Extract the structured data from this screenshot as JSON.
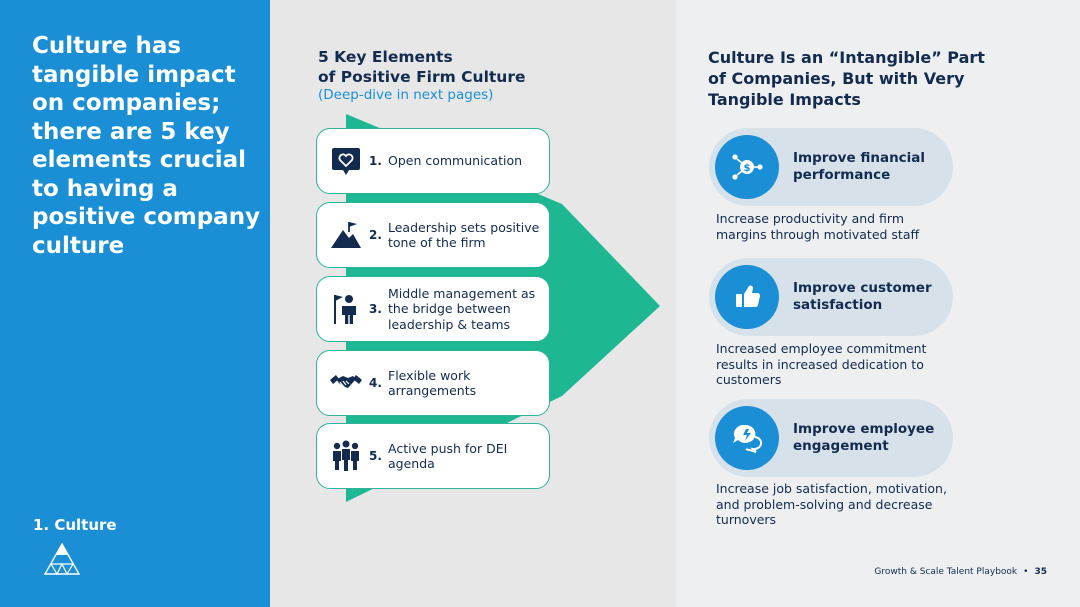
{
  "left": {
    "headline": "Culture has tangible impact on companies; there are 5 key elements crucial to having a positive company culture",
    "section_label": "1. Culture"
  },
  "middle": {
    "title_line1": "5 Key Elements",
    "title_line2": "of Positive Firm Culture",
    "subtitle": "(Deep-dive in next pages)",
    "elements": [
      {
        "number": "1.",
        "text": "Open communication",
        "icon": "heart-chat-icon"
      },
      {
        "number": "2.",
        "text": "Leadership sets positive tone of the firm",
        "icon": "mountain-flag-icon"
      },
      {
        "number": "3.",
        "text": "Middle management as the bridge between leadership & teams",
        "icon": "person-flag-icon"
      },
      {
        "number": "4.",
        "text": "Flexible work arrangements",
        "icon": "handshake-icon"
      },
      {
        "number": "5.",
        "text": "Active push for DEI agenda",
        "icon": "group-people-icon"
      }
    ]
  },
  "right": {
    "title": "Culture Is an “Intangible” Part of Companies, But with Very Tangible Impacts",
    "impacts": [
      {
        "label": "Improve financial performance",
        "desc": "Increase productivity and firm margins through motivated staff",
        "icon": "dollar-network-icon"
      },
      {
        "label": "Improve customer satisfaction",
        "desc": "Increased employee commitment results in increased dedication to customers",
        "icon": "thumbs-up-icon"
      },
      {
        "label": "Improve employee engagement",
        "desc": "Increase job satisfaction, motivation, and problem-solving and decrease turnovers",
        "icon": "chat-bubbles-icon"
      }
    ]
  },
  "footer": {
    "text": "Growth & Scale Talent Playbook",
    "bullet": "•",
    "page": "35"
  },
  "colors": {
    "blue": "#1a8fd6",
    "navy": "#122b4f",
    "teal": "#1db892",
    "pill": "#d7e1ea"
  }
}
